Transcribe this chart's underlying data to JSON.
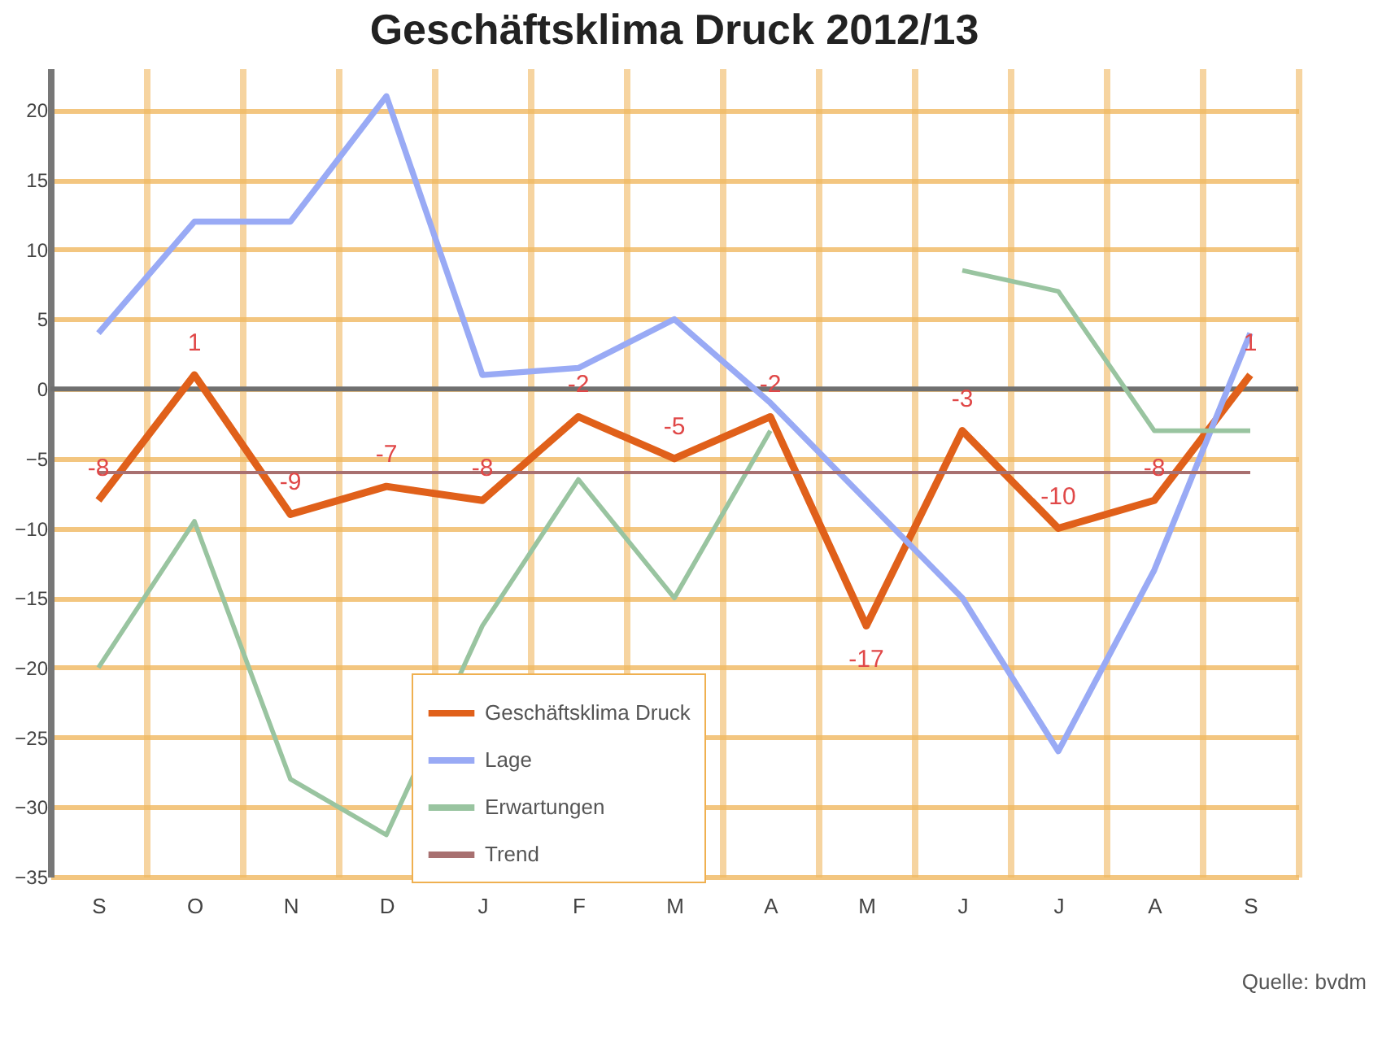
{
  "chart_data": {
    "type": "line",
    "title": "Geschäftsklima Druck 2012/13",
    "categories": [
      "S",
      "O",
      "N",
      "D",
      "J",
      "F",
      "M",
      "A",
      "M",
      "J",
      "J",
      "A",
      "S"
    ],
    "series": [
      {
        "name": "Geschäftsklima Druck",
        "color": "#e0601a",
        "values": [
          -8,
          1,
          -9,
          -7,
          -8,
          -2,
          -5,
          -2,
          -17,
          -3,
          -10,
          -8,
          1
        ],
        "value_labels": [
          "-8",
          "1",
          "-9",
          "-7",
          "-8",
          "-2",
          "-5",
          "-2",
          "-17",
          "-3",
          "-10",
          "-8",
          "1"
        ]
      },
      {
        "name": "Lage",
        "color": "#99aaf5",
        "values": [
          4,
          12,
          12,
          21,
          1,
          1.5,
          5,
          -1,
          -8,
          -15,
          -26,
          -13,
          4
        ]
      },
      {
        "name": "Erwartungen",
        "color": "#99c4a0",
        "values": [
          -20,
          -9.5,
          -28,
          -32,
          -17,
          -6.5,
          -15,
          -3,
          null,
          8.5,
          7,
          -3,
          -3
        ]
      },
      {
        "name": "Trend",
        "color": "#a87070",
        "values": [
          -6,
          -6,
          -6,
          -6,
          -6,
          -6,
          -6,
          -6,
          -6,
          -6,
          -6,
          -6,
          -6
        ]
      }
    ],
    "ylim": [
      -35,
      23
    ],
    "yticks": [
      -35,
      -30,
      -25,
      -20,
      -15,
      -10,
      -5,
      0,
      5,
      10,
      15,
      20
    ],
    "ref_lines": [
      {
        "axis": "y",
        "value": 0,
        "color": "#707070"
      }
    ],
    "grid": true,
    "legend": "bottom",
    "marker": "none",
    "line_style": "solid",
    "annotations": [
      "Quelle: bvdm"
    ]
  }
}
